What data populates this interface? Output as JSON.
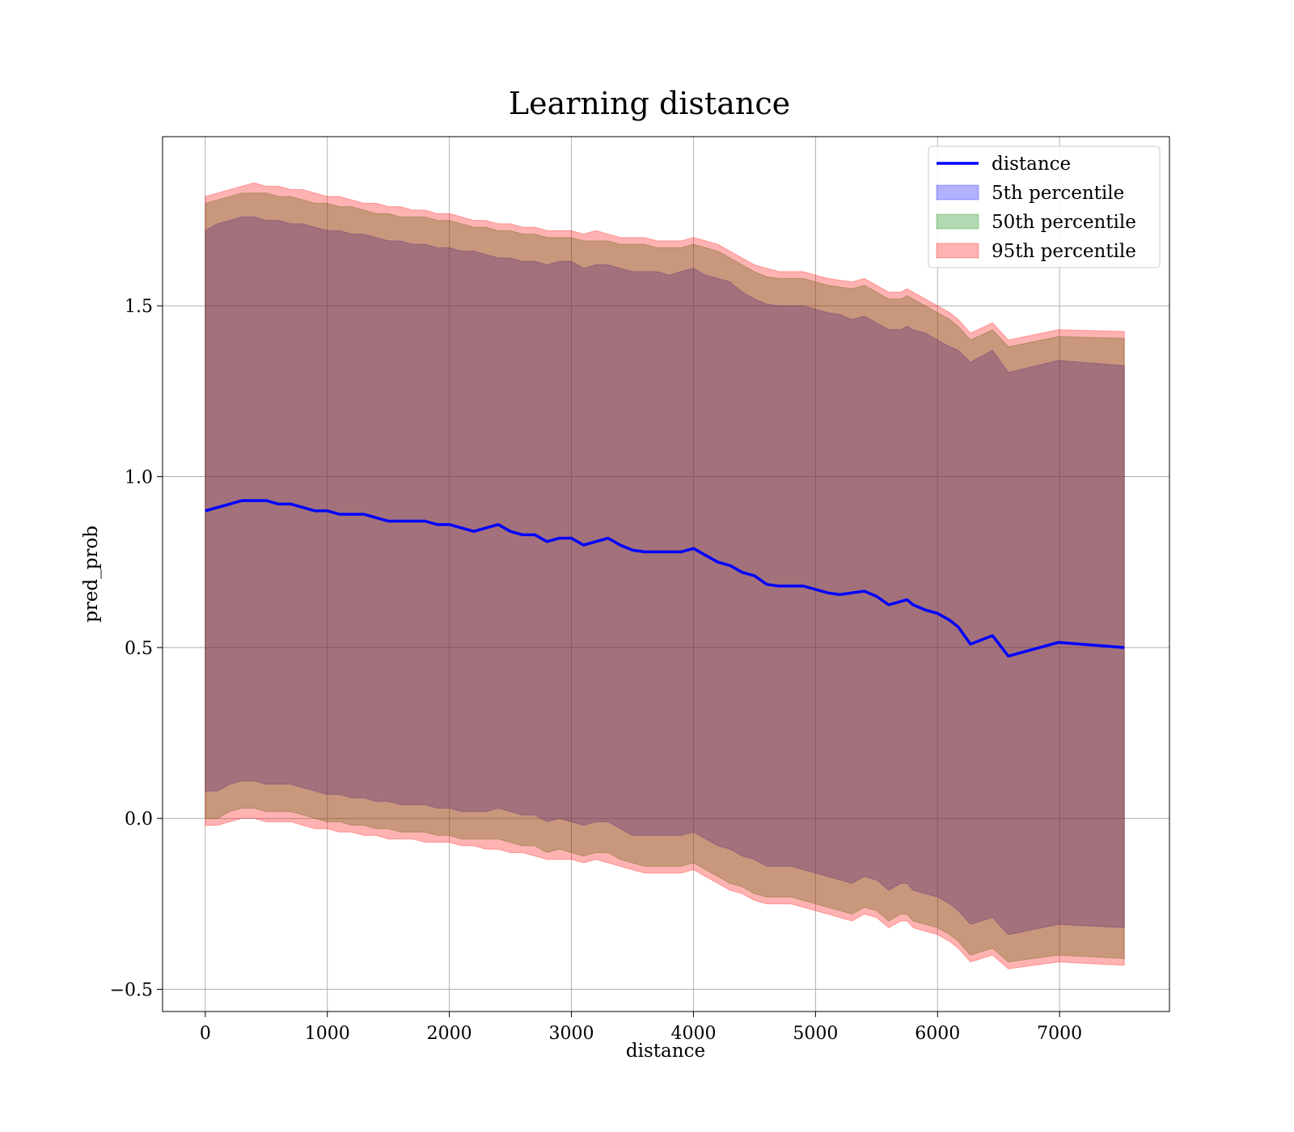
{
  "chart_data": {
    "type": "line",
    "title": "Learning distance",
    "xlabel": "distance",
    "ylabel": "pred_prob",
    "xlim": [
      -350,
      7900
    ],
    "ylim": [
      -0.565,
      1.995
    ],
    "xticks": [
      0,
      1000,
      2000,
      3000,
      4000,
      5000,
      6000,
      7000
    ],
    "xtick_labels": [
      "0",
      "1000",
      "2000",
      "3000",
      "4000",
      "5000",
      "6000",
      "7000"
    ],
    "yticks": [
      -0.5,
      0.0,
      0.5,
      1.0,
      1.5
    ],
    "ytick_labels": [
      "−0.5",
      "0.0",
      "0.5",
      "1.0",
      "1.5"
    ],
    "grid": true,
    "legend_position": "top-right",
    "colors": {
      "line": "#0000ff",
      "band_5th": "#0000ff",
      "band_50th": "#008000",
      "band_95th": "#ff0000",
      "grid": "#b0b0b0"
    },
    "x": [
      0,
      100,
      200,
      300,
      400,
      500,
      600,
      700,
      800,
      900,
      1000,
      1100,
      1200,
      1300,
      1400,
      1500,
      1600,
      1700,
      1800,
      1900,
      2000,
      2100,
      2200,
      2300,
      2400,
      2500,
      2600,
      2700,
      2800,
      2900,
      3000,
      3100,
      3200,
      3300,
      3400,
      3500,
      3600,
      3700,
      3800,
      3900,
      4000,
      4100,
      4200,
      4300,
      4400,
      4500,
      4600,
      4700,
      4800,
      4900,
      5000,
      5100,
      5200,
      5300,
      5400,
      5500,
      5600,
      5700,
      5750,
      5800,
      5900,
      6000,
      6100,
      6170,
      6270,
      6450,
      6580,
      6990,
      7530
    ],
    "series": [
      {
        "name": "distance",
        "kind": "line",
        "y": [
          0.9,
          0.91,
          0.92,
          0.93,
          0.93,
          0.93,
          0.92,
          0.92,
          0.91,
          0.9,
          0.9,
          0.89,
          0.89,
          0.89,
          0.88,
          0.87,
          0.87,
          0.87,
          0.87,
          0.86,
          0.86,
          0.85,
          0.84,
          0.85,
          0.86,
          0.84,
          0.83,
          0.83,
          0.81,
          0.82,
          0.82,
          0.8,
          0.81,
          0.82,
          0.8,
          0.785,
          0.78,
          0.78,
          0.78,
          0.78,
          0.79,
          0.77,
          0.75,
          0.74,
          0.72,
          0.71,
          0.685,
          0.68,
          0.68,
          0.68,
          0.67,
          0.66,
          0.655,
          0.66,
          0.665,
          0.65,
          0.625,
          0.635,
          0.64,
          0.625,
          0.61,
          0.6,
          0.58,
          0.56,
          0.51,
          0.535,
          0.475,
          0.515,
          0.5
        ]
      },
      {
        "name": "5th percentile",
        "kind": "band",
        "upper": [
          1.72,
          1.74,
          1.75,
          1.76,
          1.76,
          1.75,
          1.75,
          1.74,
          1.74,
          1.73,
          1.72,
          1.72,
          1.71,
          1.71,
          1.7,
          1.69,
          1.69,
          1.68,
          1.68,
          1.67,
          1.67,
          1.66,
          1.66,
          1.65,
          1.64,
          1.64,
          1.63,
          1.63,
          1.62,
          1.63,
          1.63,
          1.61,
          1.62,
          1.62,
          1.61,
          1.6,
          1.6,
          1.6,
          1.59,
          1.6,
          1.61,
          1.59,
          1.58,
          1.57,
          1.54,
          1.52,
          1.505,
          1.5,
          1.5,
          1.5,
          1.49,
          1.48,
          1.475,
          1.46,
          1.47,
          1.45,
          1.43,
          1.43,
          1.44,
          1.43,
          1.42,
          1.4,
          1.38,
          1.37,
          1.335,
          1.37,
          1.305,
          1.34,
          1.325
        ],
        "lower": [
          0.08,
          0.08,
          0.1,
          0.11,
          0.11,
          0.1,
          0.1,
          0.1,
          0.09,
          0.08,
          0.07,
          0.07,
          0.06,
          0.06,
          0.05,
          0.05,
          0.04,
          0.04,
          0.04,
          0.03,
          0.03,
          0.02,
          0.02,
          0.02,
          0.03,
          0.02,
          0.01,
          0.01,
          -0.01,
          0.0,
          -0.01,
          -0.02,
          -0.01,
          -0.01,
          -0.03,
          -0.05,
          -0.05,
          -0.05,
          -0.05,
          -0.05,
          -0.04,
          -0.06,
          -0.08,
          -0.09,
          -0.11,
          -0.12,
          -0.14,
          -0.14,
          -0.14,
          -0.15,
          -0.16,
          -0.17,
          -0.18,
          -0.19,
          -0.17,
          -0.18,
          -0.21,
          -0.19,
          -0.19,
          -0.21,
          -0.22,
          -0.23,
          -0.25,
          -0.27,
          -0.31,
          -0.29,
          -0.34,
          -0.31,
          -0.32
        ]
      },
      {
        "name": "50th percentile",
        "kind": "band",
        "upper": [
          1.8,
          1.81,
          1.82,
          1.83,
          1.83,
          1.83,
          1.82,
          1.82,
          1.81,
          1.8,
          1.8,
          1.79,
          1.79,
          1.78,
          1.77,
          1.77,
          1.76,
          1.76,
          1.76,
          1.75,
          1.75,
          1.74,
          1.73,
          1.73,
          1.72,
          1.72,
          1.71,
          1.71,
          1.7,
          1.7,
          1.7,
          1.69,
          1.69,
          1.69,
          1.68,
          1.68,
          1.68,
          1.67,
          1.67,
          1.67,
          1.68,
          1.67,
          1.66,
          1.64,
          1.62,
          1.6,
          1.585,
          1.58,
          1.58,
          1.58,
          1.57,
          1.56,
          1.555,
          1.55,
          1.56,
          1.54,
          1.52,
          1.52,
          1.53,
          1.52,
          1.5,
          1.48,
          1.46,
          1.44,
          1.4,
          1.43,
          1.38,
          1.41,
          1.405
        ],
        "lower": [
          0.0,
          0.0,
          0.02,
          0.03,
          0.03,
          0.02,
          0.02,
          0.02,
          0.01,
          0.0,
          -0.01,
          -0.01,
          -0.02,
          -0.02,
          -0.03,
          -0.03,
          -0.04,
          -0.04,
          -0.04,
          -0.05,
          -0.05,
          -0.06,
          -0.06,
          -0.06,
          -0.06,
          -0.07,
          -0.08,
          -0.08,
          -0.1,
          -0.09,
          -0.1,
          -0.11,
          -0.1,
          -0.1,
          -0.12,
          -0.13,
          -0.14,
          -0.14,
          -0.14,
          -0.14,
          -0.13,
          -0.15,
          -0.17,
          -0.19,
          -0.2,
          -0.22,
          -0.23,
          -0.23,
          -0.23,
          -0.24,
          -0.25,
          -0.26,
          -0.27,
          -0.28,
          -0.26,
          -0.27,
          -0.3,
          -0.28,
          -0.28,
          -0.3,
          -0.31,
          -0.32,
          -0.34,
          -0.36,
          -0.4,
          -0.38,
          -0.42,
          -0.4,
          -0.41
        ]
      },
      {
        "name": "95th percentile",
        "kind": "band",
        "upper": [
          1.82,
          1.83,
          1.84,
          1.85,
          1.86,
          1.85,
          1.85,
          1.84,
          1.84,
          1.83,
          1.82,
          1.82,
          1.81,
          1.8,
          1.8,
          1.79,
          1.79,
          1.78,
          1.78,
          1.77,
          1.77,
          1.76,
          1.75,
          1.75,
          1.74,
          1.74,
          1.73,
          1.73,
          1.72,
          1.72,
          1.72,
          1.71,
          1.72,
          1.71,
          1.7,
          1.7,
          1.7,
          1.69,
          1.69,
          1.69,
          1.7,
          1.69,
          1.68,
          1.66,
          1.64,
          1.62,
          1.61,
          1.6,
          1.6,
          1.6,
          1.59,
          1.58,
          1.575,
          1.57,
          1.58,
          1.56,
          1.54,
          1.54,
          1.55,
          1.54,
          1.52,
          1.5,
          1.48,
          1.46,
          1.42,
          1.45,
          1.4,
          1.43,
          1.425
        ],
        "lower": [
          -0.02,
          -0.02,
          -0.01,
          0.0,
          0.0,
          -0.01,
          -0.01,
          -0.01,
          -0.02,
          -0.03,
          -0.03,
          -0.04,
          -0.04,
          -0.05,
          -0.05,
          -0.06,
          -0.06,
          -0.06,
          -0.07,
          -0.07,
          -0.07,
          -0.08,
          -0.08,
          -0.09,
          -0.09,
          -0.1,
          -0.1,
          -0.11,
          -0.12,
          -0.12,
          -0.12,
          -0.13,
          -0.12,
          -0.13,
          -0.14,
          -0.15,
          -0.16,
          -0.16,
          -0.16,
          -0.16,
          -0.15,
          -0.17,
          -0.19,
          -0.21,
          -0.22,
          -0.24,
          -0.25,
          -0.25,
          -0.25,
          -0.26,
          -0.27,
          -0.28,
          -0.29,
          -0.3,
          -0.28,
          -0.29,
          -0.32,
          -0.3,
          -0.3,
          -0.32,
          -0.33,
          -0.34,
          -0.36,
          -0.38,
          -0.42,
          -0.4,
          -0.44,
          -0.42,
          -0.43
        ]
      }
    ]
  }
}
